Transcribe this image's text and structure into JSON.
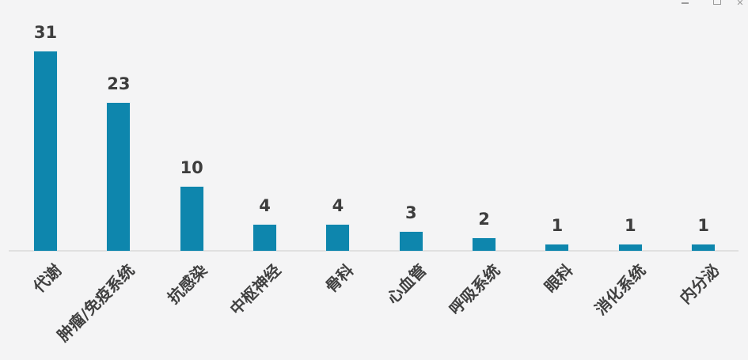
{
  "window_controls": {
    "close_glyph": "✕"
  },
  "chart_data": {
    "type": "bar",
    "title": "",
    "xlabel": "",
    "ylabel": "",
    "categories": [
      "代谢",
      "肿瘤/免疫系统",
      "抗感染",
      "中枢神经",
      "骨科",
      "心血管",
      "呼吸系统",
      "眼科",
      "消化系统",
      "内分泌"
    ],
    "values": [
      31,
      23,
      10,
      4,
      4,
      3,
      2,
      1,
      1,
      1
    ],
    "ylim": [
      0,
      33
    ],
    "grid": false,
    "legend": "none",
    "data_labels_shown": true,
    "category_label_rotation_deg": 45,
    "colors": {
      "bar": "#0e86ad",
      "value_label": "#3d3d3d",
      "category_label": "#404040",
      "axis_line": "#e0e0e0",
      "background": "#f4f4f5",
      "window_control": "#9a9a9a"
    }
  }
}
